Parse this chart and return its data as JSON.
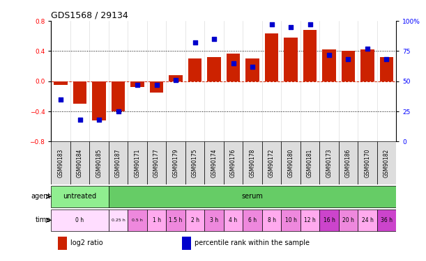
{
  "title": "GDS1568 / 29134",
  "samples": [
    "GSM90183",
    "GSM90184",
    "GSM90185",
    "GSM90187",
    "GSM90171",
    "GSM90177",
    "GSM90179",
    "GSM90175",
    "GSM90174",
    "GSM90176",
    "GSM90178",
    "GSM90172",
    "GSM90180",
    "GSM90181",
    "GSM90173",
    "GSM90186",
    "GSM90170",
    "GSM90182"
  ],
  "log2_ratio": [
    -0.05,
    -0.3,
    -0.52,
    -0.4,
    -0.08,
    -0.15,
    0.08,
    0.3,
    0.32,
    0.37,
    0.3,
    0.63,
    0.58,
    0.68,
    0.42,
    0.4,
    0.42,
    0.32
  ],
  "percentile": [
    35,
    18,
    18,
    25,
    47,
    47,
    51,
    82,
    85,
    65,
    62,
    97,
    95,
    97,
    72,
    68,
    77,
    68
  ],
  "agent_groups": [
    {
      "label": "untreated",
      "start": 0,
      "end": 3,
      "color": "#90ee90"
    },
    {
      "label": "serum",
      "start": 3,
      "end": 18,
      "color": "#66cc66"
    }
  ],
  "time_spans": [
    {
      "label": "0 h",
      "start": 0,
      "end": 3,
      "color": "#ffddff"
    },
    {
      "label": "0.25 h",
      "start": 3,
      "end": 4,
      "color": "#ffddff"
    },
    {
      "label": "0.5 h",
      "start": 4,
      "end": 5,
      "color": "#ee88dd"
    },
    {
      "label": "1 h",
      "start": 5,
      "end": 6,
      "color": "#ffaaee"
    },
    {
      "label": "1.5 h",
      "start": 6,
      "end": 7,
      "color": "#ee88dd"
    },
    {
      "label": "2 h",
      "start": 7,
      "end": 8,
      "color": "#ffaaee"
    },
    {
      "label": "3 h",
      "start": 8,
      "end": 9,
      "color": "#ee88dd"
    },
    {
      "label": "4 h",
      "start": 9,
      "end": 10,
      "color": "#ffaaee"
    },
    {
      "label": "6 h",
      "start": 10,
      "end": 11,
      "color": "#ee88dd"
    },
    {
      "label": "8 h",
      "start": 11,
      "end": 12,
      "color": "#ffaaee"
    },
    {
      "label": "10 h",
      "start": 12,
      "end": 13,
      "color": "#ee88dd"
    },
    {
      "label": "12 h",
      "start": 13,
      "end": 14,
      "color": "#ffaaee"
    },
    {
      "label": "16 h",
      "start": 14,
      "end": 15,
      "color": "#cc44cc"
    },
    {
      "label": "20 h",
      "start": 15,
      "end": 16,
      "color": "#ee88dd"
    },
    {
      "label": "24 h",
      "start": 16,
      "end": 17,
      "color": "#ffaaee"
    },
    {
      "label": "36 h",
      "start": 17,
      "end": 18,
      "color": "#cc44cc"
    }
  ],
  "bar_color": "#cc2200",
  "dot_color": "#0000cc",
  "ylim_left": [
    -0.8,
    0.8
  ],
  "ylim_right": [
    0,
    100
  ],
  "yticks_left": [
    -0.8,
    -0.4,
    0.0,
    0.4,
    0.8
  ],
  "yticks_right": [
    0,
    25,
    50,
    75,
    100
  ],
  "dotted_lines": [
    -0.4,
    0.4
  ],
  "zero_line_color": "#cc2200",
  "legend_items": [
    {
      "label": "log2 ratio",
      "color": "#cc2200"
    },
    {
      "label": "percentile rank within the sample",
      "color": "#0000cc"
    }
  ],
  "sample_box_color": "#dddddd",
  "label_font_size": 7,
  "tick_font_size": 6.5
}
